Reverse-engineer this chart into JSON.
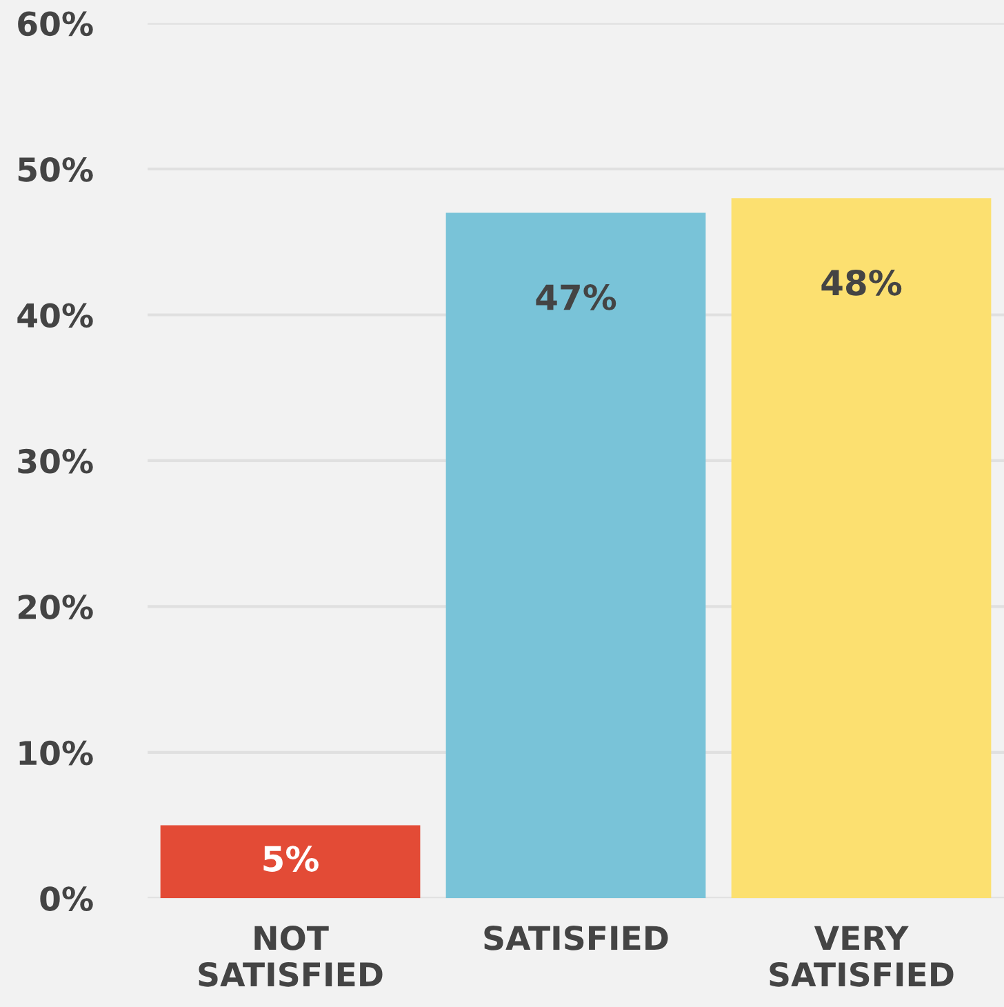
{
  "chart_data": {
    "type": "bar",
    "categories": [
      "NOT\nSATISFIED",
      "SATISFIED",
      "VERY\nSATISFIED"
    ],
    "values": [
      5,
      47,
      48
    ],
    "colors": [
      "#e34b36",
      "#79c3d8",
      "#fce070"
    ],
    "value_labels": [
      "5%",
      "47%",
      "48%"
    ],
    "ylim": [
      0,
      60
    ],
    "yticks": [
      {
        "value": 0,
        "label": "0%"
      },
      {
        "value": 10,
        "label": "10%"
      },
      {
        "value": 20,
        "label": "20%"
      },
      {
        "value": 30,
        "label": "30%"
      },
      {
        "value": 40,
        "label": "40%"
      },
      {
        "value": 50,
        "label": "50%"
      },
      {
        "value": 60,
        "label": "60%"
      }
    ],
    "grid": "y",
    "legend": false
  }
}
